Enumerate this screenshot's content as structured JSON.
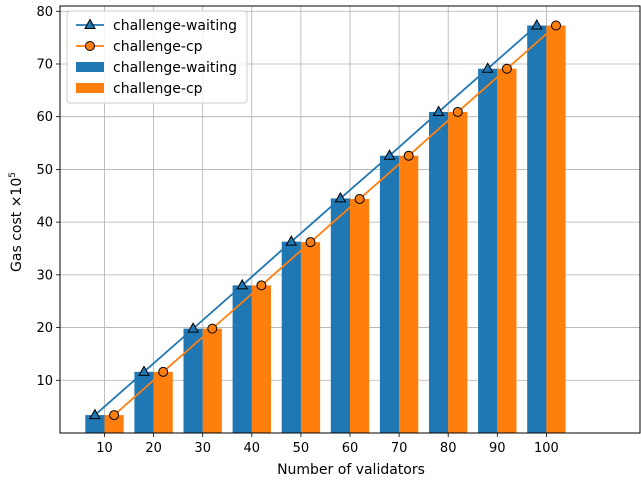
{
  "chart_data": {
    "type": "bar",
    "xlabel": "Number of validators",
    "ylabel": "Gas cost ×10",
    "ylabel_exponent": "5",
    "categories": [
      "10",
      "20",
      "30",
      "40",
      "50",
      "60",
      "70",
      "80",
      "90",
      "100"
    ],
    "ylim": [
      0,
      81
    ],
    "yticks": [
      "10",
      "20",
      "30",
      "40",
      "50",
      "60",
      "70",
      "80"
    ],
    "grid": true,
    "legend_position": "top-left",
    "series": [
      {
        "name": "challenge-waiting",
        "kind": "line",
        "marker": "triangle",
        "color": "#1f77b4",
        "values": [
          3.4,
          11.6,
          19.8,
          28.0,
          36.3,
          44.5,
          52.6,
          60.9,
          69.1,
          77.3
        ]
      },
      {
        "name": "challenge-cp",
        "kind": "line",
        "marker": "circle",
        "color": "#ff7f0e",
        "values": [
          3.4,
          11.6,
          19.8,
          28.0,
          36.2,
          44.4,
          52.6,
          60.9,
          69.1,
          77.3
        ]
      },
      {
        "name": "challenge-waiting",
        "kind": "bar",
        "color": "#1f77b4",
        "values": [
          3.4,
          11.6,
          19.8,
          28.0,
          36.3,
          44.5,
          52.6,
          60.9,
          69.1,
          77.3
        ]
      },
      {
        "name": "challenge-cp",
        "kind": "bar",
        "color": "#ff7f0e",
        "values": [
          3.4,
          11.6,
          19.8,
          28.0,
          36.2,
          44.4,
          52.6,
          60.9,
          69.1,
          77.3
        ]
      }
    ]
  }
}
